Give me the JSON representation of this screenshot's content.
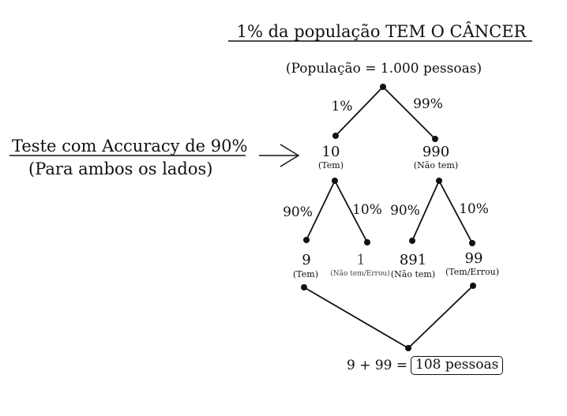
{
  "title": "1% da população TEM O CÂNCER",
  "population": "(População = 1.000 pessoas)",
  "side_note": {
    "line1": "Teste com Accuracy de 90%",
    "line2": "(Para ambos os lados)"
  },
  "level1": {
    "left_edge": "1%",
    "right_edge": "99%",
    "left_value": "10",
    "left_caption": "(Tem)",
    "right_value": "990",
    "right_caption": "(Não tem)"
  },
  "level2_left": {
    "left_edge": "90%",
    "right_edge": "10%",
    "left_value": "9",
    "left_caption": "(Tem)",
    "right_value": "1",
    "right_caption": "(Não tem/Errou)"
  },
  "level2_right": {
    "left_edge": "90%",
    "right_edge": "10%",
    "left_value": "891",
    "left_caption": "(Não tem)",
    "right_value": "99",
    "right_caption": "(Tem/Errou)"
  },
  "sum": {
    "expression": "9 + 99 =",
    "result": "108 pessoas"
  }
}
